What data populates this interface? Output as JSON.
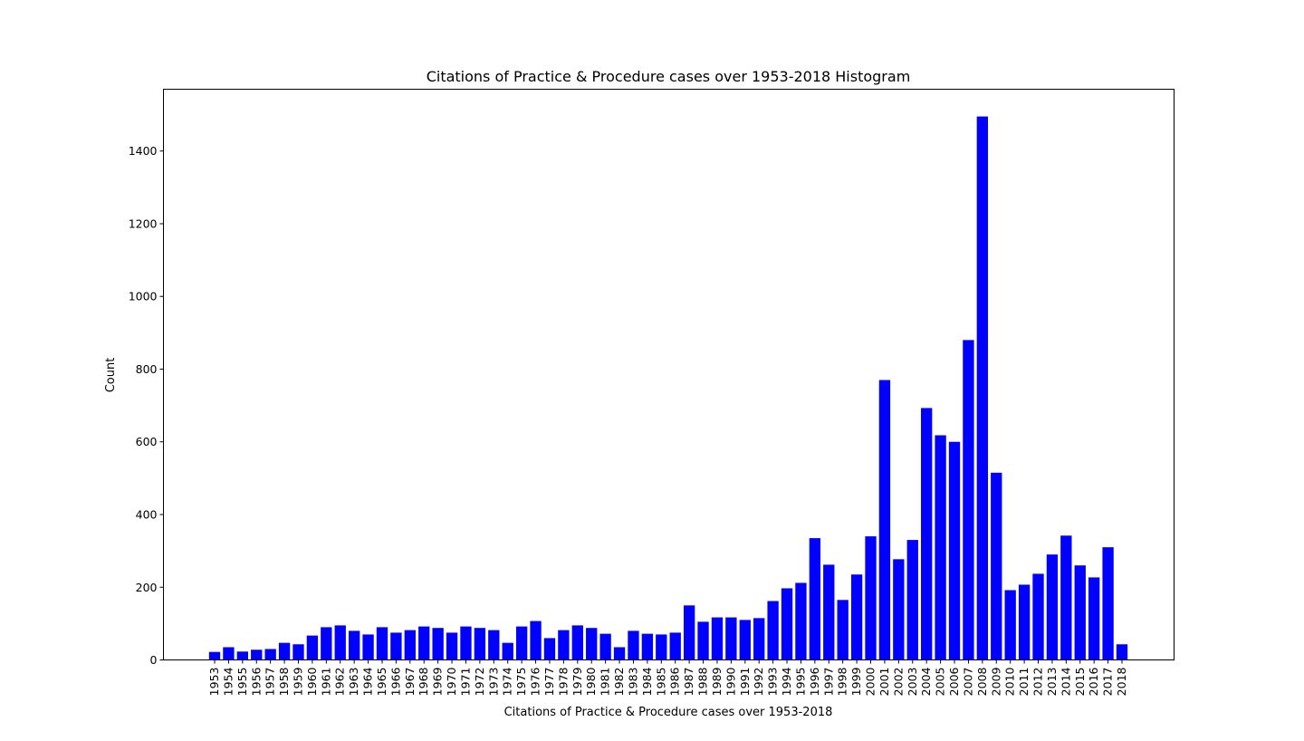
{
  "chart_data": {
    "type": "bar",
    "title": "Citations of Practice & Procedure cases over 1953-2018 Histogram",
    "xlabel": "Citations of Practice & Procedure cases over 1953-2018",
    "ylabel": "Count",
    "ylim": [
      0,
      1570
    ],
    "yticks": [
      "0",
      "200",
      "400",
      "600",
      "800",
      "1000",
      "1200",
      "1400"
    ],
    "bar_color": "#0000ff",
    "grid": false,
    "legend": "none",
    "categories": [
      "1953",
      "1954",
      "1955",
      "1956",
      "1957",
      "1958",
      "1959",
      "1960",
      "1961",
      "1962",
      "1963",
      "1964",
      "1965",
      "1966",
      "1967",
      "1968",
      "1969",
      "1970",
      "1971",
      "1972",
      "1973",
      "1974",
      "1975",
      "1976",
      "1977",
      "1978",
      "1979",
      "1980",
      "1981",
      "1982",
      "1983",
      "1984",
      "1985",
      "1986",
      "1987",
      "1988",
      "1989",
      "1990",
      "1991",
      "1992",
      "1993",
      "1994",
      "1995",
      "1996",
      "1997",
      "1998",
      "1999",
      "2000",
      "2001",
      "2002",
      "2003",
      "2004",
      "2005",
      "2006",
      "2007",
      "2008",
      "2009",
      "2010",
      "2011",
      "2012",
      "2013",
      "2014",
      "2015",
      "2016",
      "2017",
      "2018"
    ],
    "values": [
      22,
      35,
      23,
      28,
      30,
      47,
      43,
      67,
      90,
      95,
      80,
      70,
      90,
      75,
      82,
      92,
      88,
      75,
      92,
      88,
      82,
      47,
      92,
      107,
      60,
      82,
      95,
      88,
      72,
      35,
      80,
      72,
      70,
      75,
      150,
      105,
      117,
      117,
      110,
      115,
      162,
      197,
      212,
      335,
      262,
      165,
      235,
      340,
      770,
      277,
      330,
      693,
      618,
      600,
      880,
      1495,
      515,
      192,
      207,
      237,
      290,
      342,
      260,
      227,
      310,
      43
    ]
  }
}
